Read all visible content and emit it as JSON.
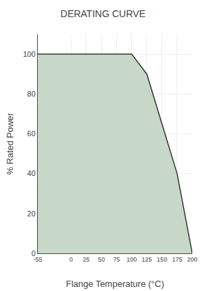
{
  "chart_data": {
    "type": "area",
    "title": "DERATING CURVE",
    "xlabel": "Flange Temperature (°C)",
    "ylabel": "% Rated Power",
    "x": [
      -55,
      0,
      25,
      50,
      75,
      100,
      125,
      150,
      175,
      200
    ],
    "values": [
      100,
      100,
      100,
      100,
      100,
      100,
      90,
      65,
      40,
      0
    ],
    "color": "#c8d8c8",
    "xlim": [
      -55,
      200
    ],
    "ylim": [
      0,
      110
    ],
    "xticks": [
      -55,
      0,
      25,
      50,
      75,
      100,
      125,
      150,
      175,
      200
    ],
    "yticks": [
      0,
      20,
      40,
      60,
      80,
      100
    ],
    "grid": true
  }
}
